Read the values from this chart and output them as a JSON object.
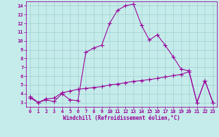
{
  "xlabel": "Windchill (Refroidissement éolien,°C)",
  "background_color": "#c5ecea",
  "grid_color": "#9ecece",
  "line_color": "#990099",
  "xlim": [
    -0.5,
    23.5
  ],
  "ylim": [
    2.5,
    14.5
  ],
  "yticks": [
    3,
    4,
    5,
    6,
    7,
    8,
    9,
    10,
    11,
    12,
    13,
    14
  ],
  "xticks": [
    0,
    1,
    2,
    3,
    4,
    5,
    6,
    7,
    8,
    9,
    10,
    11,
    12,
    13,
    14,
    15,
    16,
    17,
    18,
    19,
    20,
    21,
    22,
    23
  ],
  "curve1_x": [
    0,
    1,
    2,
    3,
    4,
    5,
    6,
    7,
    8,
    9,
    10,
    11,
    12,
    13,
    14,
    15,
    16,
    17,
    18,
    19,
    20,
    21,
    22,
    23
  ],
  "curve1_y": [
    3.7,
    3.0,
    3.3,
    3.1,
    4.0,
    3.3,
    3.2,
    8.7,
    9.2,
    9.5,
    12.0,
    13.5,
    14.0,
    14.2,
    11.8,
    10.1,
    10.7,
    9.5,
    8.2,
    6.8,
    6.6,
    3.0,
    5.5,
    3.0
  ],
  "curve2_x": [
    0,
    1,
    2,
    3,
    4,
    5,
    6,
    7,
    8,
    9,
    10,
    11,
    12,
    13,
    14,
    15,
    16,
    17,
    18,
    19,
    20,
    21,
    22,
    23
  ],
  "curve2_y": [
    3.5,
    3.0,
    3.4,
    3.5,
    4.1,
    4.3,
    4.5,
    4.6,
    4.7,
    4.8,
    5.0,
    5.1,
    5.25,
    5.4,
    5.5,
    5.6,
    5.75,
    5.9,
    6.05,
    6.2,
    6.5,
    3.0,
    5.5,
    3.0
  ],
  "marker": "+",
  "markersize": 4,
  "linewidth": 0.8
}
